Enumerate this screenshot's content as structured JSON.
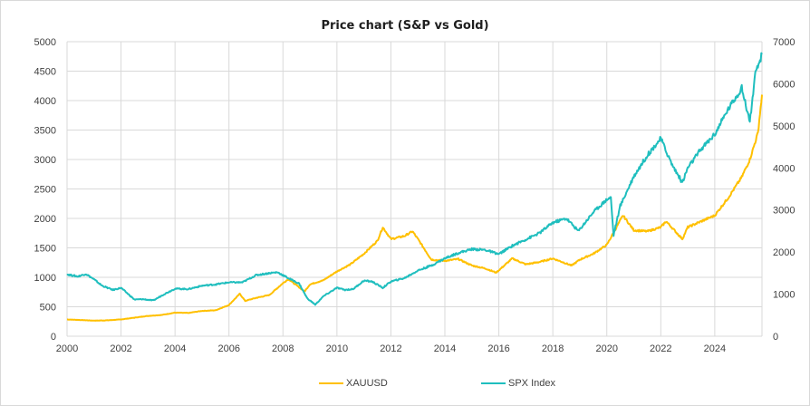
{
  "chart_data": {
    "type": "line",
    "title": "Price chart (S&P vs Gold)",
    "xlabel": "",
    "ylabel": "",
    "y2label": "",
    "xlim": [
      2000,
      2025.75
    ],
    "ylim": [
      0,
      5000
    ],
    "y2lim": [
      0,
      7000
    ],
    "grid": true,
    "legend_position": "bottom",
    "x_ticks": [
      "2000",
      "2002",
      "2004",
      "2006",
      "2008",
      "2010",
      "2012",
      "2014",
      "2016",
      "2018",
      "2020",
      "2022",
      "2024"
    ],
    "y_ticks": [
      "0",
      "500",
      "1000",
      "1500",
      "2000",
      "2500",
      "3000",
      "3500",
      "4000",
      "4500",
      "5000"
    ],
    "y2_ticks": [
      "0",
      "1000",
      "2000",
      "3000",
      "4000",
      "5000",
      "6000",
      "7000"
    ],
    "series": [
      {
        "name": "XAUUSD",
        "axis": "left",
        "color": "#FFC000",
        "x": [
          2000,
          2000.5,
          2001,
          2001.5,
          2002,
          2002.5,
          2003,
          2003.5,
          2004,
          2004.5,
          2005,
          2005.5,
          2006,
          2006.4,
          2006.6,
          2007,
          2007.5,
          2008,
          2008.2,
          2008.8,
          2009,
          2009.5,
          2010,
          2010.5,
          2011,
          2011.5,
          2011.7,
          2012,
          2012.5,
          2012.8,
          2013,
          2013.5,
          2014,
          2014.5,
          2015,
          2015.5,
          2015.9,
          2016.5,
          2017,
          2017.5,
          2018,
          2018.7,
          2019,
          2019.5,
          2020,
          2020.6,
          2021,
          2021.5,
          2022,
          2022.2,
          2022.8,
          2023,
          2023.5,
          2024,
          2024.5,
          2025,
          2025.3,
          2025.6,
          2025.75
        ],
        "values": [
          285,
          275,
          265,
          270,
          285,
          315,
          345,
          360,
          400,
          395,
          430,
          440,
          530,
          720,
          600,
          650,
          700,
          900,
          970,
          760,
          880,
          950,
          1100,
          1220,
          1400,
          1620,
          1850,
          1650,
          1700,
          1780,
          1650,
          1300,
          1280,
          1310,
          1200,
          1150,
          1080,
          1320,
          1220,
          1260,
          1320,
          1200,
          1300,
          1400,
          1550,
          2050,
          1800,
          1780,
          1850,
          1950,
          1650,
          1850,
          1950,
          2050,
          2350,
          2700,
          3000,
          3450,
          4100
        ]
      },
      {
        "name": "SPX Index",
        "axis": "right",
        "color": "#1FBEBE",
        "x": [
          2000,
          2000.4,
          2000.7,
          2001,
          2001.3,
          2001.7,
          2002,
          2002.5,
          2002.8,
          2003.2,
          2003.6,
          2004,
          2004.5,
          2005,
          2005.5,
          2006,
          2006.5,
          2007,
          2007.5,
          2007.8,
          2008.2,
          2008.6,
          2008.9,
          2009.2,
          2009.5,
          2010,
          2010.3,
          2010.6,
          2011,
          2011.3,
          2011.7,
          2012,
          2012.5,
          2013,
          2013.5,
          2014,
          2014.5,
          2015,
          2015.5,
          2016,
          2016.5,
          2017,
          2017.5,
          2018,
          2018.5,
          2018.95,
          2019.5,
          2020,
          2020.15,
          2020.25,
          2020.5,
          2021,
          2021.5,
          2022,
          2022.4,
          2022.8,
          2023,
          2023.5,
          2024,
          2024.5,
          2025,
          2025.3,
          2025.5,
          2025.75
        ],
        "values": [
          1470,
          1420,
          1480,
          1350,
          1200,
          1100,
          1150,
          870,
          880,
          850,
          1000,
          1130,
          1120,
          1200,
          1230,
          1280,
          1280,
          1450,
          1500,
          1520,
          1380,
          1250,
          900,
          750,
          950,
          1150,
          1100,
          1120,
          1320,
          1300,
          1150,
          1300,
          1380,
          1560,
          1680,
          1850,
          1980,
          2070,
          2050,
          1950,
          2150,
          2300,
          2450,
          2700,
          2800,
          2500,
          2950,
          3250,
          3300,
          2400,
          3100,
          3800,
          4300,
          4700,
          4100,
          3650,
          4000,
          4450,
          4800,
          5400,
          5900,
          5100,
          6200,
          6700
        ]
      }
    ]
  },
  "legend": [
    {
      "label": "XAUUSD",
      "color": "#FFC000"
    },
    {
      "label": "SPX Index",
      "color": "#1FBEBE"
    }
  ]
}
